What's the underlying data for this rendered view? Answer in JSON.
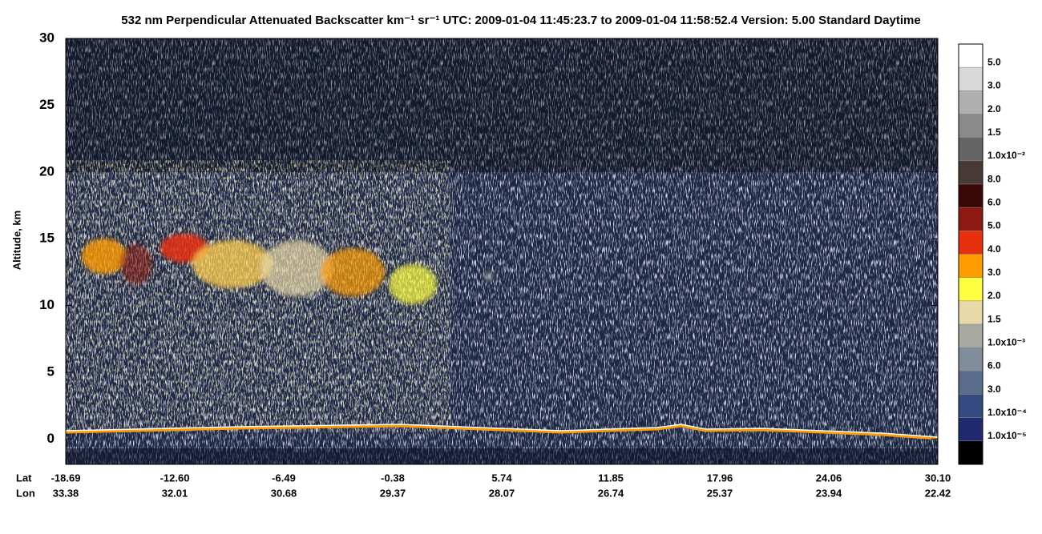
{
  "chart_data": {
    "type": "curtain",
    "title": "532 nm Perpendicular Attenuated Backscatter km⁻¹ sr⁻¹  UTC: 2009-01-04 11:45:23.7 to 2009-01-04 11:58:52.4  Version: 5.00 Standard Daytime",
    "y_label": "Altitude, km",
    "ylim": [
      -1.9,
      30
    ],
    "yticks": [
      0,
      5,
      10,
      15,
      20,
      25,
      30
    ],
    "x_rows": [
      {
        "name": "Lat",
        "labels": [
          "-18.69",
          "-12.60",
          "-6.49",
          "-0.38",
          "5.74",
          "11.85",
          "17.96",
          "24.06",
          "30.10"
        ]
      },
      {
        "name": "Lon",
        "labels": [
          "33.38",
          "32.01",
          "30.68",
          "29.37",
          "28.07",
          "26.74",
          "25.37",
          "23.94",
          "22.42"
        ]
      }
    ],
    "colorbar_labels": [
      "5.0",
      "3.0",
      "2.0",
      "1.5",
      "1.0x10⁻²",
      "8.0",
      "6.0",
      "5.0",
      "4.0",
      "3.0",
      "2.0",
      "1.5",
      "1.0x10⁻³",
      "6.0",
      "3.0",
      "1.0x10⁻⁴",
      "1.0x10⁻⁵"
    ],
    "colorbar_colors": [
      "#ffffff",
      "#d9d9d9",
      "#b0b0b0",
      "#8a8a8a",
      "#646464",
      "#473a36",
      "#3a0806",
      "#8c1a12",
      "#e8300e",
      "#ff9c00",
      "#ffff40",
      "#e8d9a8",
      "#a8aaa2",
      "#7f8c9a",
      "#5a6e8c",
      "#344a80",
      "#1f2a6e",
      "#000000"
    ]
  }
}
